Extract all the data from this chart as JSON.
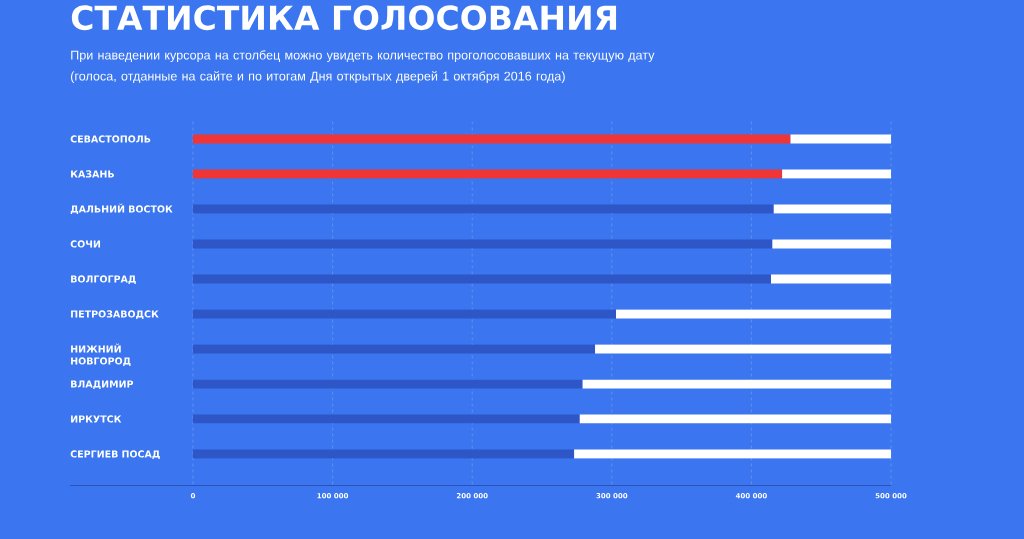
{
  "chart_data": {
    "type": "bar",
    "orientation": "horizontal",
    "stacked": true,
    "title": "СТАТИСТИКА ГОЛОСОВАНИЯ",
    "subtitle": "При наведении курсора на столбец можно увидеть количество проголосовавших на текущую дату (голоса, отданные на сайте и по итогам Дня открытых дверей 1 октября 2016 года)",
    "categories": [
      "СЕВАСТОПОЛЬ",
      "КАЗАНЬ",
      "ДАЛЬНИЙ ВОСТОК",
      "СОЧИ",
      "ВОЛГОГРАД",
      "ПЕТРОЗАВОДСК",
      "НИЖНИЙ НОВГОРОД",
      "ВЛАДИМИР",
      "ИРКУТСК",
      "СЕРГИЕВ ПОСАД"
    ],
    "series": [
      {
        "colors": [
          "#ef3535",
          "#ef3535",
          "#2f56c6",
          "#2f56c6",
          "#2f56c6",
          "#2f56c6",
          "#2f56c6",
          "#2f56c6",
          "#2f56c6",
          "#2f56c6"
        ],
        "values": [
          428000,
          422000,
          416000,
          415000,
          414000,
          303000,
          288000,
          279000,
          277000,
          273000
        ]
      },
      {
        "color": "#ffffff",
        "values": [
          72000,
          78000,
          84000,
          85000,
          86000,
          197000,
          212000,
          221000,
          223000,
          227000
        ]
      }
    ],
    "xlim": [
      0,
      500000
    ],
    "xticks": [
      0,
      {
        "value": 100000,
        "label": "100 000"
      },
      {
        "value": 200000,
        "label": "200 000"
      },
      {
        "value": 300000,
        "label": "300 000"
      },
      {
        "value": 400000,
        "label": "400 000"
      },
      {
        "value": 500000,
        "label": "500 000"
      }
    ],
    "grid": "x"
  }
}
